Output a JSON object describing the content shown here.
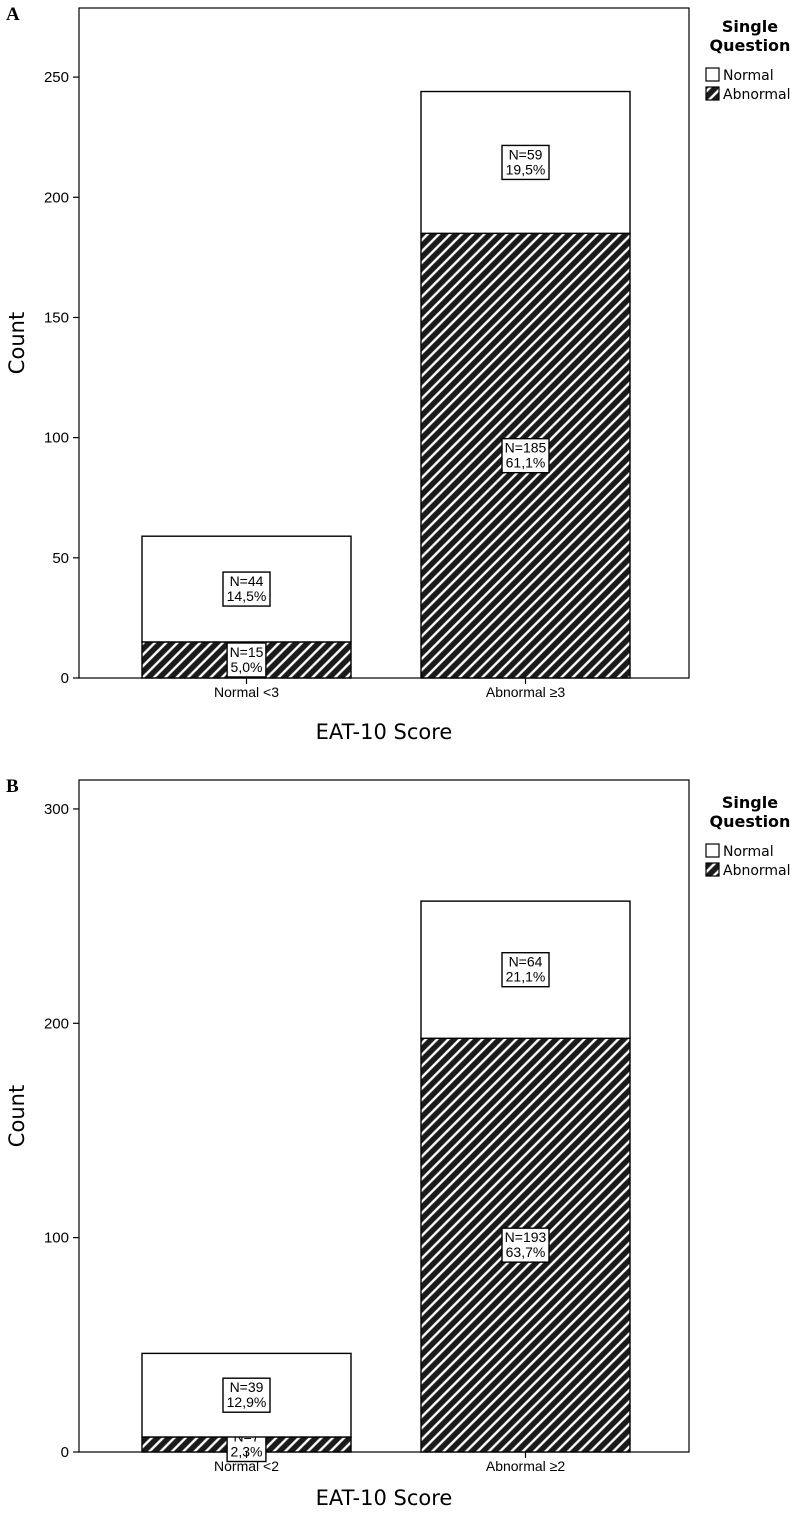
{
  "chart_data": [
    {
      "panel_label": "A",
      "type": "bar",
      "stacked": true,
      "categories": [
        "Normal <3",
        "Abnormal ≥3"
      ],
      "series": [
        {
          "name": "Abnormal",
          "pattern": "hatched",
          "values": [
            15,
            185
          ],
          "labels": [
            [
              "N=15",
              "5,0%"
            ],
            [
              "N=185",
              "61,1%"
            ]
          ]
        },
        {
          "name": "Normal",
          "pattern": "white",
          "values": [
            44,
            59
          ],
          "labels": [
            [
              "N=44",
              "14,5%"
            ],
            [
              "N=59",
              "19,5%"
            ]
          ]
        }
      ],
      "xlabel": "EAT-10 Score",
      "ylabel": "Count",
      "ylim": [
        0,
        250
      ],
      "yticks": [
        0,
        50,
        100,
        150,
        200,
        250
      ],
      "legend": {
        "title": [
          "Single",
          "Question"
        ],
        "entries": [
          "Normal",
          "Abnormal"
        ],
        "position": "right"
      }
    },
    {
      "panel_label": "B",
      "type": "bar",
      "stacked": true,
      "categories": [
        "Normal <2",
        "Abnormal ≥2"
      ],
      "series": [
        {
          "name": "Abnormal",
          "pattern": "hatched",
          "values": [
            7,
            193
          ],
          "labels": [
            [
              "N=7",
              "2,3%"
            ],
            [
              "N=193",
              "63,7%"
            ]
          ]
        },
        {
          "name": "Normal",
          "pattern": "white",
          "values": [
            39,
            64
          ],
          "labels": [
            [
              "N=39",
              "12,9%"
            ],
            [
              "N=64",
              "21,1%"
            ]
          ]
        }
      ],
      "xlabel": "EAT-10 Score",
      "ylabel": "Count",
      "ylim": [
        0,
        300
      ],
      "yticks": [
        0,
        100,
        200,
        300
      ],
      "legend": {
        "title": [
          "Single",
          "Question"
        ],
        "entries": [
          "Normal",
          "Abnormal"
        ],
        "position": "right"
      }
    }
  ],
  "colors": {
    "ink": "#000000",
    "background": "#ffffff",
    "hatch_fill": "#1a1a1a",
    "hatch_line": "#ffffff"
  }
}
